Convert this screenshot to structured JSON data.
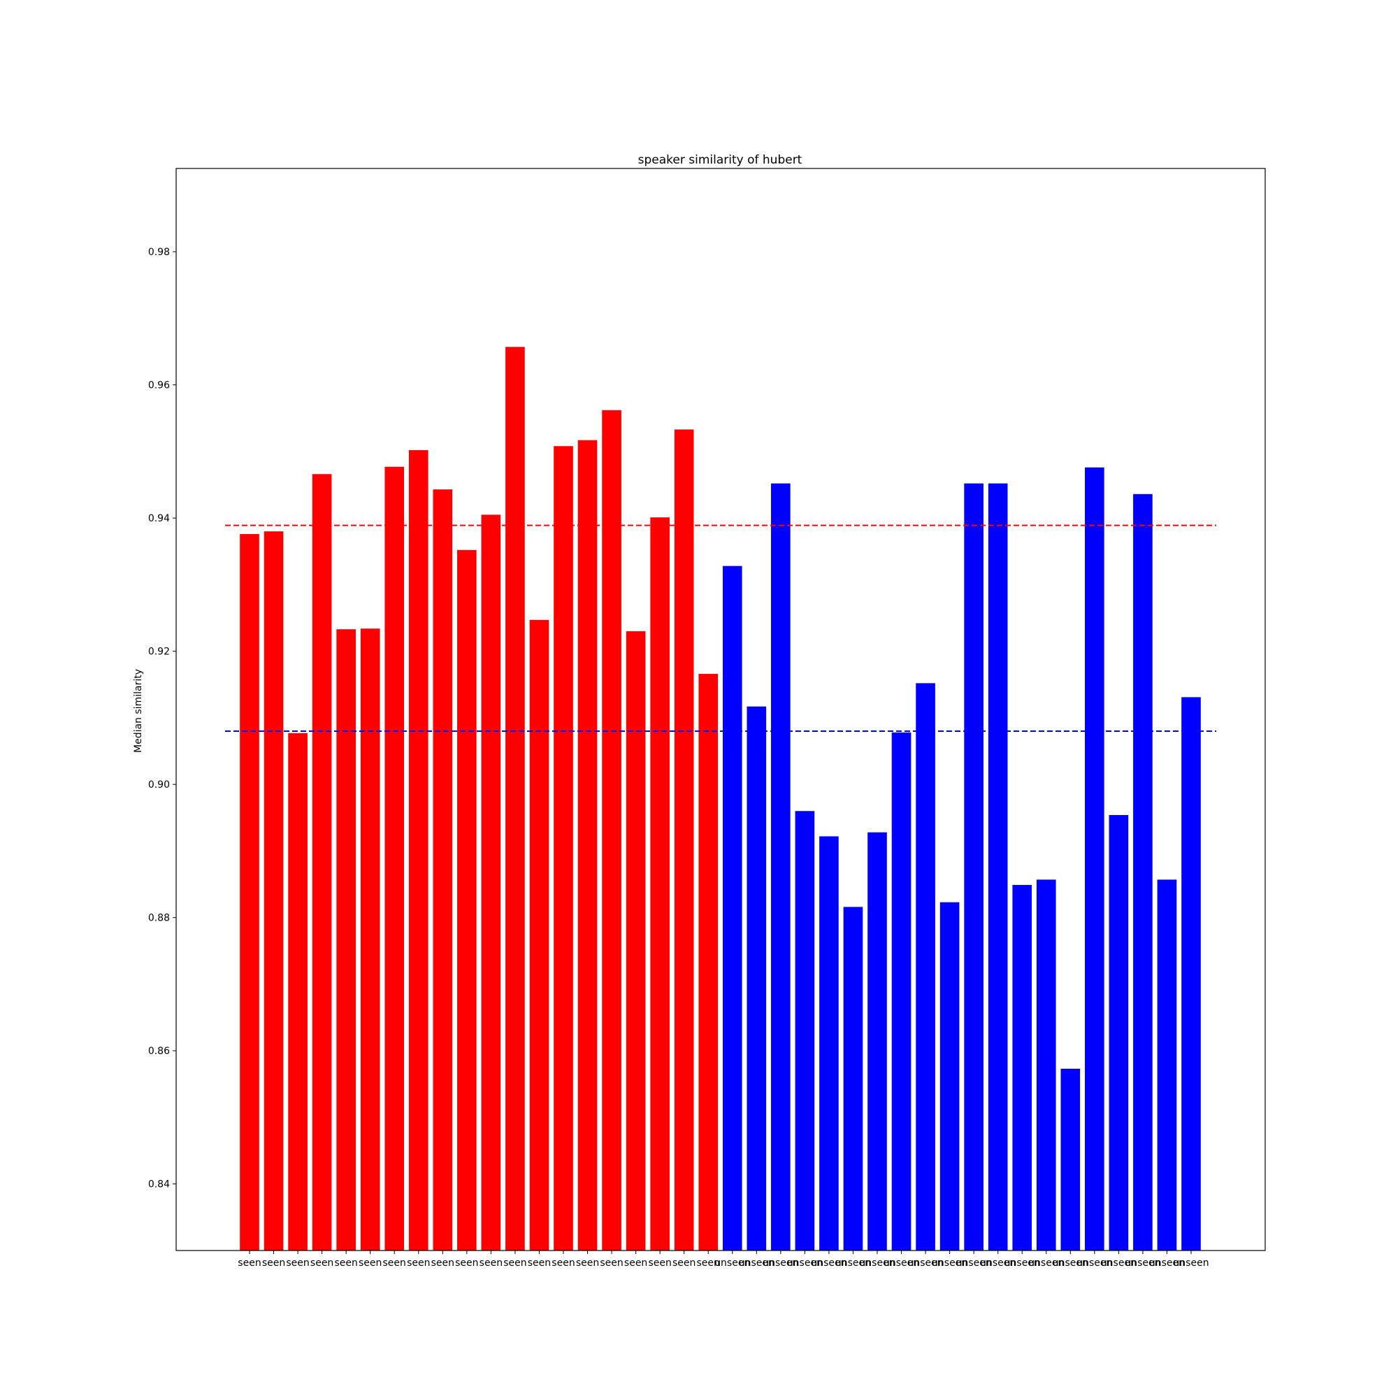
{
  "chart_data": {
    "type": "bar",
    "title": "speaker similarity of hubert",
    "xlabel": "",
    "ylabel": "Median similarity",
    "ylim": [
      0.83,
      0.9925
    ],
    "yticks": [
      "0.84",
      "0.86",
      "0.88",
      "0.90",
      "0.92",
      "0.94",
      "0.96",
      "0.98"
    ],
    "grid": false,
    "categories": [
      "seen",
      "seen",
      "seen",
      "seen",
      "seen",
      "seen",
      "seen",
      "seen",
      "seen",
      "seen",
      "seen",
      "seen",
      "seen",
      "seen",
      "seen",
      "seen",
      "seen",
      "seen",
      "seen",
      "seen",
      "unseen",
      "unseen",
      "unseen",
      "unseen",
      "unseen",
      "unseen",
      "unseen",
      "unseen",
      "unseen",
      "unseen",
      "unseen",
      "unseen",
      "unseen",
      "unseen",
      "unseen",
      "unseen",
      "unseen",
      "unseen",
      "unseen",
      "unseen"
    ],
    "values": [
      0.9376,
      0.938,
      0.9077,
      0.9466,
      0.9233,
      0.9234,
      0.9477,
      0.9502,
      0.9443,
      0.9352,
      0.9405,
      0.9657,
      0.9247,
      0.9508,
      0.9517,
      0.9562,
      0.923,
      0.9401,
      0.9533,
      0.9166,
      0.9328,
      0.9117,
      0.9452,
      0.896,
      0.8922,
      0.8816,
      0.8928,
      0.9078,
      0.9152,
      0.8823,
      0.9452,
      0.9452,
      0.8849,
      0.8857,
      0.8573,
      0.9476,
      0.8954,
      0.9436,
      0.8857,
      0.9131
    ],
    "bar_colors": [
      "#ff0000",
      "#ff0000",
      "#ff0000",
      "#ff0000",
      "#ff0000",
      "#ff0000",
      "#ff0000",
      "#ff0000",
      "#ff0000",
      "#ff0000",
      "#ff0000",
      "#ff0000",
      "#ff0000",
      "#ff0000",
      "#ff0000",
      "#ff0000",
      "#ff0000",
      "#ff0000",
      "#ff0000",
      "#ff0000",
      "#0000ff",
      "#0000ff",
      "#0000ff",
      "#0000ff",
      "#0000ff",
      "#0000ff",
      "#0000ff",
      "#0000ff",
      "#0000ff",
      "#0000ff",
      "#0000ff",
      "#0000ff",
      "#0000ff",
      "#0000ff",
      "#0000ff",
      "#0000ff",
      "#0000ff",
      "#0000ff",
      "#0000ff",
      "#0000ff"
    ],
    "reference_lines": [
      {
        "value": 0.9389,
        "color": "#ff0000",
        "style": "dashed"
      },
      {
        "value": 0.908,
        "color": "#0000ff",
        "style": "dashed"
      }
    ]
  }
}
